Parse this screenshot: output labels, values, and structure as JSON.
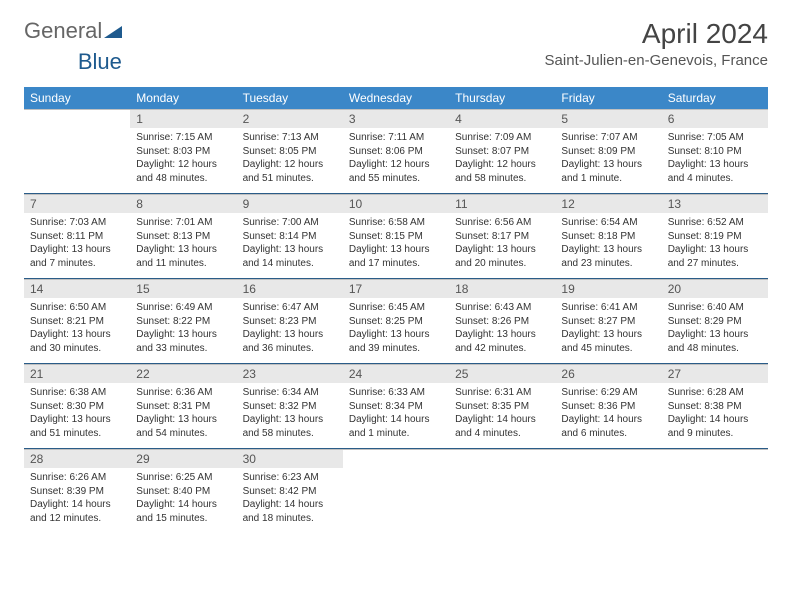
{
  "brand": {
    "part1": "General",
    "part2": "Blue",
    "triangle_color": "#1e5a8e"
  },
  "title": {
    "month": "April 2024",
    "location": "Saint-Julien-en-Genevois, France"
  },
  "colors": {
    "header_bg": "#3b87c8",
    "daynum_bg": "#e8e8e8",
    "rule": "#2a5c88"
  },
  "weekdays": [
    "Sunday",
    "Monday",
    "Tuesday",
    "Wednesday",
    "Thursday",
    "Friday",
    "Saturday"
  ],
  "weeks": [
    {
      "days": [
        {
          "num": "",
          "sunrise": "",
          "sunset": "",
          "daylight": ""
        },
        {
          "num": "1",
          "sunrise": "Sunrise: 7:15 AM",
          "sunset": "Sunset: 8:03 PM",
          "daylight": "Daylight: 12 hours and 48 minutes."
        },
        {
          "num": "2",
          "sunrise": "Sunrise: 7:13 AM",
          "sunset": "Sunset: 8:05 PM",
          "daylight": "Daylight: 12 hours and 51 minutes."
        },
        {
          "num": "3",
          "sunrise": "Sunrise: 7:11 AM",
          "sunset": "Sunset: 8:06 PM",
          "daylight": "Daylight: 12 hours and 55 minutes."
        },
        {
          "num": "4",
          "sunrise": "Sunrise: 7:09 AM",
          "sunset": "Sunset: 8:07 PM",
          "daylight": "Daylight: 12 hours and 58 minutes."
        },
        {
          "num": "5",
          "sunrise": "Sunrise: 7:07 AM",
          "sunset": "Sunset: 8:09 PM",
          "daylight": "Daylight: 13 hours and 1 minute."
        },
        {
          "num": "6",
          "sunrise": "Sunrise: 7:05 AM",
          "sunset": "Sunset: 8:10 PM",
          "daylight": "Daylight: 13 hours and 4 minutes."
        }
      ]
    },
    {
      "days": [
        {
          "num": "7",
          "sunrise": "Sunrise: 7:03 AM",
          "sunset": "Sunset: 8:11 PM",
          "daylight": "Daylight: 13 hours and 7 minutes."
        },
        {
          "num": "8",
          "sunrise": "Sunrise: 7:01 AM",
          "sunset": "Sunset: 8:13 PM",
          "daylight": "Daylight: 13 hours and 11 minutes."
        },
        {
          "num": "9",
          "sunrise": "Sunrise: 7:00 AM",
          "sunset": "Sunset: 8:14 PM",
          "daylight": "Daylight: 13 hours and 14 minutes."
        },
        {
          "num": "10",
          "sunrise": "Sunrise: 6:58 AM",
          "sunset": "Sunset: 8:15 PM",
          "daylight": "Daylight: 13 hours and 17 minutes."
        },
        {
          "num": "11",
          "sunrise": "Sunrise: 6:56 AM",
          "sunset": "Sunset: 8:17 PM",
          "daylight": "Daylight: 13 hours and 20 minutes."
        },
        {
          "num": "12",
          "sunrise": "Sunrise: 6:54 AM",
          "sunset": "Sunset: 8:18 PM",
          "daylight": "Daylight: 13 hours and 23 minutes."
        },
        {
          "num": "13",
          "sunrise": "Sunrise: 6:52 AM",
          "sunset": "Sunset: 8:19 PM",
          "daylight": "Daylight: 13 hours and 27 minutes."
        }
      ]
    },
    {
      "days": [
        {
          "num": "14",
          "sunrise": "Sunrise: 6:50 AM",
          "sunset": "Sunset: 8:21 PM",
          "daylight": "Daylight: 13 hours and 30 minutes."
        },
        {
          "num": "15",
          "sunrise": "Sunrise: 6:49 AM",
          "sunset": "Sunset: 8:22 PM",
          "daylight": "Daylight: 13 hours and 33 minutes."
        },
        {
          "num": "16",
          "sunrise": "Sunrise: 6:47 AM",
          "sunset": "Sunset: 8:23 PM",
          "daylight": "Daylight: 13 hours and 36 minutes."
        },
        {
          "num": "17",
          "sunrise": "Sunrise: 6:45 AM",
          "sunset": "Sunset: 8:25 PM",
          "daylight": "Daylight: 13 hours and 39 minutes."
        },
        {
          "num": "18",
          "sunrise": "Sunrise: 6:43 AM",
          "sunset": "Sunset: 8:26 PM",
          "daylight": "Daylight: 13 hours and 42 minutes."
        },
        {
          "num": "19",
          "sunrise": "Sunrise: 6:41 AM",
          "sunset": "Sunset: 8:27 PM",
          "daylight": "Daylight: 13 hours and 45 minutes."
        },
        {
          "num": "20",
          "sunrise": "Sunrise: 6:40 AM",
          "sunset": "Sunset: 8:29 PM",
          "daylight": "Daylight: 13 hours and 48 minutes."
        }
      ]
    },
    {
      "days": [
        {
          "num": "21",
          "sunrise": "Sunrise: 6:38 AM",
          "sunset": "Sunset: 8:30 PM",
          "daylight": "Daylight: 13 hours and 51 minutes."
        },
        {
          "num": "22",
          "sunrise": "Sunrise: 6:36 AM",
          "sunset": "Sunset: 8:31 PM",
          "daylight": "Daylight: 13 hours and 54 minutes."
        },
        {
          "num": "23",
          "sunrise": "Sunrise: 6:34 AM",
          "sunset": "Sunset: 8:32 PM",
          "daylight": "Daylight: 13 hours and 58 minutes."
        },
        {
          "num": "24",
          "sunrise": "Sunrise: 6:33 AM",
          "sunset": "Sunset: 8:34 PM",
          "daylight": "Daylight: 14 hours and 1 minute."
        },
        {
          "num": "25",
          "sunrise": "Sunrise: 6:31 AM",
          "sunset": "Sunset: 8:35 PM",
          "daylight": "Daylight: 14 hours and 4 minutes."
        },
        {
          "num": "26",
          "sunrise": "Sunrise: 6:29 AM",
          "sunset": "Sunset: 8:36 PM",
          "daylight": "Daylight: 14 hours and 6 minutes."
        },
        {
          "num": "27",
          "sunrise": "Sunrise: 6:28 AM",
          "sunset": "Sunset: 8:38 PM",
          "daylight": "Daylight: 14 hours and 9 minutes."
        }
      ]
    },
    {
      "days": [
        {
          "num": "28",
          "sunrise": "Sunrise: 6:26 AM",
          "sunset": "Sunset: 8:39 PM",
          "daylight": "Daylight: 14 hours and 12 minutes."
        },
        {
          "num": "29",
          "sunrise": "Sunrise: 6:25 AM",
          "sunset": "Sunset: 8:40 PM",
          "daylight": "Daylight: 14 hours and 15 minutes."
        },
        {
          "num": "30",
          "sunrise": "Sunrise: 6:23 AM",
          "sunset": "Sunset: 8:42 PM",
          "daylight": "Daylight: 14 hours and 18 minutes."
        },
        {
          "num": "",
          "sunrise": "",
          "sunset": "",
          "daylight": ""
        },
        {
          "num": "",
          "sunrise": "",
          "sunset": "",
          "daylight": ""
        },
        {
          "num": "",
          "sunrise": "",
          "sunset": "",
          "daylight": ""
        },
        {
          "num": "",
          "sunrise": "",
          "sunset": "",
          "daylight": ""
        }
      ]
    }
  ]
}
